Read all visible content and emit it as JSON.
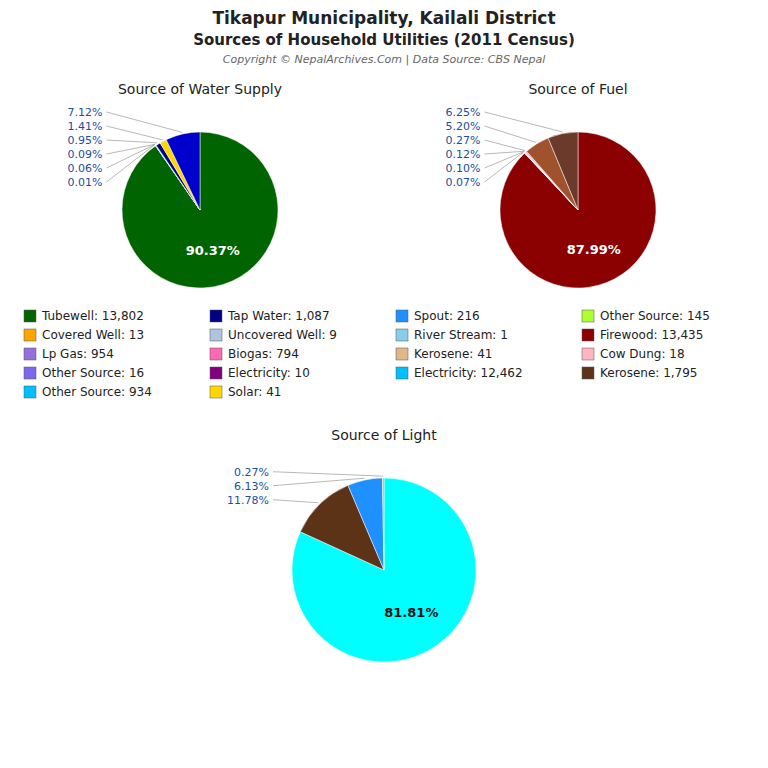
{
  "title": "Tikapur Municipality, Kailali District",
  "subtitle": "Sources of Household Utilities (2011 Census)",
  "annotations": [
    "Copyright © NepalArchives.Com | Data Source: CBS Nepal"
  ],
  "chart_data": [
    {
      "type": "pie",
      "title": "Source of Water Supply",
      "values": [
        90.37,
        0.01,
        0.06,
        0.09,
        0.95,
        1.41,
        7.12
      ],
      "value_labels": [
        "90.37%",
        "0.01%",
        "0.06%",
        "0.09%",
        "0.95%",
        "1.41%",
        "7.12%"
      ],
      "colors": [
        "#006400",
        "#ADFF2F",
        "#87CEEB",
        "#1E90FF",
        "#000080",
        "#FFD700",
        "#0000CD"
      ],
      "data_labels": true
    },
    {
      "type": "pie",
      "title": "Source of Fuel",
      "values": [
        87.99,
        0.07,
        0.1,
        0.12,
        0.27,
        5.2,
        6.25
      ],
      "value_labels": [
        "87.99%",
        "0.07%",
        "0.10%",
        "0.12%",
        "0.27%",
        "5.20%",
        "6.25%"
      ],
      "colors": [
        "#8B0000",
        "#ADD8E6",
        "#FFB6C1",
        "#BC8F8F",
        "#DDA0DD",
        "#A0522D",
        "#6B3A2A"
      ],
      "data_labels": true
    },
    {
      "type": "pie",
      "title": "Source of Light",
      "values": [
        81.81,
        11.78,
        6.13,
        0.27
      ],
      "value_labels": [
        "81.81%",
        "11.78%",
        "6.13%",
        "0.27%"
      ],
      "colors": [
        "#00FFFF",
        "#5C3317",
        "#1E90FF",
        "#FFA500"
      ],
      "data_labels": true
    }
  ],
  "legend_entries": [
    {
      "name": "Tubewell: 13,802",
      "color": "#006400"
    },
    {
      "name": "Tap Water: 1,087",
      "color": "#000080"
    },
    {
      "name": "Spout: 216",
      "color": "#1E90FF"
    },
    {
      "name": "Other Source: 145",
      "color": "#ADFF2F"
    },
    {
      "name": "Covered Well: 13",
      "color": "#FFA500"
    },
    {
      "name": "Uncovered Well: 9",
      "color": "#B0C4DE"
    },
    {
      "name": "River Stream: 1",
      "color": "#87CEEB"
    },
    {
      "name": "Firewood: 13,435",
      "color": "#8B0000"
    },
    {
      "name": "Lp Gas: 954",
      "color": "#9370DB"
    },
    {
      "name": "Biogas: 794",
      "color": "#FF69B4"
    },
    {
      "name": "Kerosene: 41",
      "color": "#DEB887"
    },
    {
      "name": "Cow Dung: 18",
      "color": "#FFB6C1"
    },
    {
      "name": "Other Source: 16",
      "color": "#7B68EE"
    },
    {
      "name": "Electricity: 10",
      "color": "#800080"
    },
    {
      "name": "Electricity: 12,462",
      "color": "#00BFFF"
    },
    {
      "name": "Kerosene: 1,795",
      "color": "#5C3317"
    },
    {
      "name": "Other Source: 934",
      "color": "#00BFFF"
    },
    {
      "name": "Solar: 41",
      "color": "#FFD700"
    }
  ]
}
